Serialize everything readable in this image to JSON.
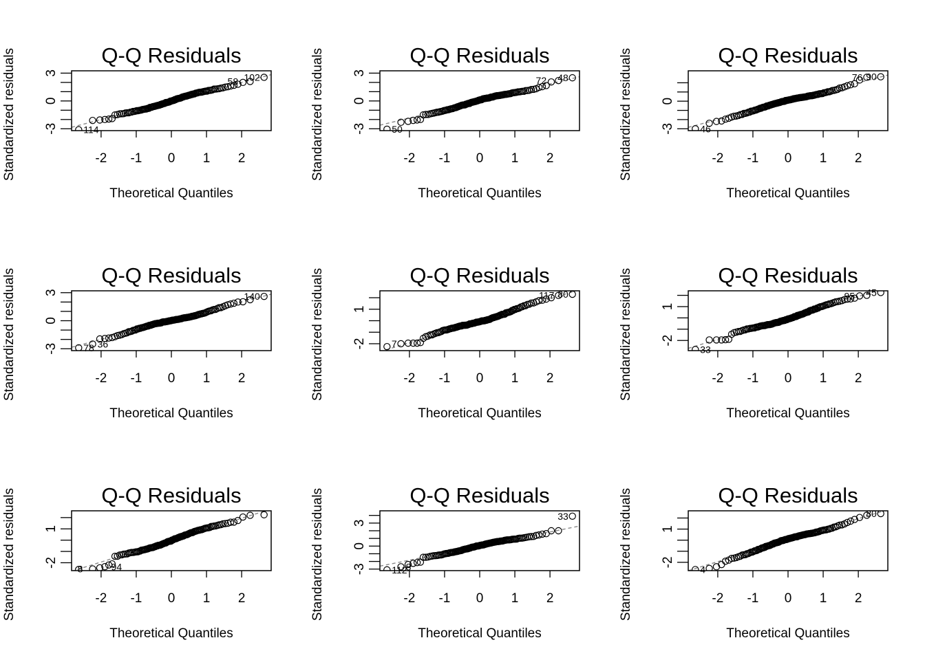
{
  "chart_data": [
    {
      "type": "scatter",
      "title": "Q-Q Residuals",
      "xlabel": "Theoretical Quantiles",
      "ylabel": "Standardized residuals",
      "xlim": [
        -2.84,
        2.84
      ],
      "xticks": [
        -2,
        -1,
        0,
        1,
        2
      ],
      "ylim": [
        -3.2,
        3.25
      ],
      "yticks": [
        -3,
        -2,
        -1,
        0,
        1,
        2,
        3
      ],
      "ytick_labels": [
        "-3",
        "0",
        "3"
      ],
      "ytick_label_values": [
        -3,
        0,
        3
      ],
      "ref_line": {
        "intercept": 0.0,
        "slope": 1.0
      },
      "shape": "s1",
      "low_tail": [
        -3.1,
        -2.1,
        -2.05,
        -2.0,
        -1.95,
        -1.9
      ],
      "high_tail": [
        2.0,
        2.1,
        2.55
      ],
      "outliers": [
        {
          "label": "114",
          "x": -2.64,
          "y": -3.1,
          "side": "right"
        },
        {
          "label": "58",
          "x": 2.02,
          "y": 2.1,
          "side": "left"
        },
        {
          "label": "102",
          "x": 2.64,
          "y": 2.55,
          "side": "left"
        }
      ]
    },
    {
      "type": "scatter",
      "title": "Q-Q Residuals",
      "xlabel": "Theoretical Quantiles",
      "ylabel": "Standardized residuals",
      "xlim": [
        -2.84,
        2.84
      ],
      "xticks": [
        -2,
        -1,
        0,
        1,
        2
      ],
      "ylim": [
        -3.2,
        3.25
      ],
      "yticks": [
        -3,
        -2,
        -1,
        0,
        1,
        2,
        3
      ],
      "ytick_labels": [
        "-3",
        "0",
        "3"
      ],
      "ytick_label_values": [
        -3,
        0,
        3
      ],
      "ref_line": {
        "intercept": 0.0,
        "slope": 0.92
      },
      "shape": "s2",
      "low_tail": [
        -3.05,
        -2.3,
        -2.2,
        -2.1,
        -2.05,
        -2.0
      ],
      "high_tail": [
        2.05,
        2.2,
        2.5
      ],
      "outliers": [
        {
          "label": "50",
          "x": -2.64,
          "y": -3.05,
          "side": "right"
        },
        {
          "label": "72",
          "x": 2.02,
          "y": 2.2,
          "side": "left"
        },
        {
          "label": "48",
          "x": 2.64,
          "y": 2.5,
          "side": "left"
        }
      ]
    },
    {
      "type": "scatter",
      "title": "Q-Q Residuals",
      "xlabel": "Theoretical Quantiles",
      "ylabel": "Standardized residuals",
      "xlim": [
        -2.84,
        2.84
      ],
      "xticks": [
        -2,
        -1,
        0,
        1,
        2
      ],
      "ylim": [
        -3.2,
        3.3
      ],
      "yticks": [
        -3,
        -2,
        -1,
        0,
        1,
        2
      ],
      "ytick_labels": [
        "-3",
        "0"
      ],
      "ytick_label_values": [
        -3,
        0
      ],
      "ref_line": {
        "intercept": 0.0,
        "slope": 1.0
      },
      "shape": "s3",
      "low_tail": [
        -3.0,
        -2.4,
        -2.2,
        -2.15,
        -1.95,
        -1.85
      ],
      "high_tail": [
        2.3,
        2.6,
        2.65
      ],
      "outliers": [
        {
          "label": "46",
          "x": -2.64,
          "y": -3.0,
          "side": "right"
        },
        {
          "label": "76",
          "x": 2.24,
          "y": 2.6,
          "side": "left"
        },
        {
          "label": "90",
          "x": 2.64,
          "y": 2.65,
          "side": "left"
        }
      ]
    },
    {
      "type": "scatter",
      "title": "Q-Q Residuals",
      "xlabel": "Theoretical Quantiles",
      "ylabel": "Standardized residuals",
      "xlim": [
        -2.84,
        2.84
      ],
      "xticks": [
        -2,
        -1,
        0,
        1,
        2
      ],
      "ylim": [
        -3.2,
        3.2
      ],
      "yticks": [
        -3,
        -2,
        -1,
        0,
        1,
        2,
        3
      ],
      "ytick_labels": [
        "-3",
        "0",
        "3"
      ],
      "ytick_label_values": [
        -3,
        0,
        3
      ],
      "ref_line": {
        "intercept": 0.0,
        "slope": 1.0
      },
      "shape": "s4",
      "low_tail": [
        -2.9,
        -2.5,
        -1.95,
        -1.9,
        -1.85,
        -1.8
      ],
      "high_tail": [
        2.0,
        2.25,
        2.6
      ],
      "outliers": [
        {
          "label": "78",
          "x": -2.64,
          "y": -2.9,
          "side": "right"
        },
        {
          "label": "36",
          "x": -2.24,
          "y": -2.5,
          "side": "right"
        },
        {
          "label": "140",
          "x": 2.64,
          "y": 2.6,
          "side": "left"
        }
      ]
    },
    {
      "type": "scatter",
      "title": "Q-Q Residuals",
      "xlabel": "Theoretical Quantiles",
      "ylabel": "Standardized residuals",
      "xlim": [
        -2.84,
        2.84
      ],
      "xticks": [
        -2,
        -1,
        0,
        1,
        2
      ],
      "ylim": [
        -2.6,
        2.6
      ],
      "yticks": [
        -2,
        -1,
        0,
        1,
        2
      ],
      "ytick_labels": [
        "-2",
        "1"
      ],
      "ytick_label_values": [
        -2,
        1
      ],
      "ref_line": {
        "intercept": 0.0,
        "slope": 0.95
      },
      "shape": "s5",
      "low_tail": [
        -2.25,
        -2.0,
        -1.95,
        -1.95,
        -1.95,
        -1.9
      ],
      "high_tail": [
        2.0,
        2.2,
        2.3
      ],
      "outliers": [
        {
          "label": "7",
          "x": -2.24,
          "y": -2.0,
          "side": "left"
        },
        {
          "label": "117",
          "x": 2.24,
          "y": 2.2,
          "side": "left"
        },
        {
          "label": "80",
          "x": 2.64,
          "y": 2.3,
          "side": "left"
        }
      ]
    },
    {
      "type": "scatter",
      "title": "Q-Q Residuals",
      "xlabel": "Theoretical Quantiles",
      "ylabel": "Standardized residuals",
      "xlim": [
        -2.84,
        2.84
      ],
      "xticks": [
        -2,
        -1,
        0,
        1,
        2
      ],
      "ylim": [
        -2.9,
        2.4
      ],
      "yticks": [
        -2,
        -1,
        0,
        1,
        2
      ],
      "ytick_labels": [
        "-2",
        "1"
      ],
      "ytick_label_values": [
        -2,
        1
      ],
      "ref_line": {
        "intercept": 0.0,
        "slope": 0.95
      },
      "shape": "s6",
      "low_tail": [
        -2.8,
        -1.95,
        -1.95,
        -1.95,
        -1.93,
        -1.9
      ],
      "high_tail": [
        1.95,
        2.0,
        2.25
      ],
      "outliers": [
        {
          "label": "33",
          "x": -2.64,
          "y": -2.8,
          "side": "right"
        },
        {
          "label": "95",
          "x": 2.02,
          "y": 1.95,
          "side": "left"
        },
        {
          "label": "45",
          "x": 2.64,
          "y": 2.25,
          "side": "left"
        }
      ]
    },
    {
      "type": "scatter",
      "title": "Q-Q Residuals",
      "xlabel": "Theoretical Quantiles",
      "ylabel": "Standardized residuals",
      "xlim": [
        -2.84,
        2.84
      ],
      "xticks": [
        -2,
        -1,
        0,
        1,
        2
      ],
      "ylim": [
        -2.7,
        2.6
      ],
      "yticks": [
        -2,
        -1,
        0,
        1,
        2
      ],
      "ytick_labels": [
        "-2",
        "1"
      ],
      "ytick_label_values": [
        -2,
        1
      ],
      "ref_line": {
        "intercept": 0.0,
        "slope": 0.97
      },
      "shape": "s7",
      "low_tail": [
        -2.6,
        -2.55,
        -2.45,
        -2.35,
        -2.2,
        -2.1
      ],
      "high_tail": [
        2.05,
        2.2,
        2.25
      ],
      "outliers": [
        {
          "label": "8",
          "x": -2.4,
          "y": -2.55,
          "side": "left"
        },
        {
          "label": "94",
          "x": -1.85,
          "y": -2.35,
          "side": "right"
        }
      ]
    },
    {
      "type": "scatter",
      "title": "Q-Q Residuals",
      "xlabel": "Theoretical Quantiles",
      "ylabel": "Standardized residuals",
      "xlim": [
        -2.84,
        2.84
      ],
      "xticks": [
        -2,
        -1,
        0,
        1,
        2
      ],
      "ylim": [
        -3.2,
        4.6
      ],
      "yticks": [
        -3,
        -2,
        -1,
        0,
        1,
        2,
        3,
        4
      ],
      "ytick_labels": [
        "-3",
        "0",
        "3"
      ],
      "ytick_label_values": [
        -3,
        0,
        3
      ],
      "ref_line": {
        "intercept": 0.0,
        "slope": 0.92
      },
      "shape": "s8",
      "low_tail": [
        -3.1,
        -2.7,
        -2.4,
        -2.25,
        -2.15,
        -2.1
      ],
      "high_tail": [
        2.0,
        2.0,
        3.9
      ],
      "outliers": [
        {
          "label": "112",
          "x": -2.64,
          "y": -3.1,
          "side": "right"
        },
        {
          "label": "8",
          "x": -2.24,
          "y": -2.7,
          "side": "right"
        },
        {
          "label": "33",
          "x": 2.64,
          "y": 3.9,
          "side": "left"
        }
      ]
    },
    {
      "type": "scatter",
      "title": "Q-Q Residuals",
      "xlabel": "Theoretical Quantiles",
      "ylabel": "Standardized residuals",
      "xlim": [
        -2.84,
        2.84
      ],
      "xticks": [
        -2,
        -1,
        0,
        1,
        2
      ],
      "ylim": [
        -2.75,
        2.65
      ],
      "yticks": [
        -2,
        -1,
        0,
        1,
        2
      ],
      "ytick_labels": [
        "-2",
        "1"
      ],
      "ytick_label_values": [
        -2,
        1
      ],
      "ref_line": {
        "intercept": 0.0,
        "slope": 0.97
      },
      "shape": "s9",
      "low_tail": [
        -2.65,
        -2.55,
        -2.4,
        -2.2,
        -1.9,
        -1.8
      ],
      "high_tail": [
        2.05,
        2.25,
        2.4
      ],
      "outliers": [
        {
          "label": "4",
          "x": -2.64,
          "y": -2.65,
          "side": "right"
        },
        {
          "label": "80",
          "x": 2.64,
          "y": 2.4,
          "side": "left"
        }
      ]
    }
  ],
  "n_points_per_panel": 120
}
